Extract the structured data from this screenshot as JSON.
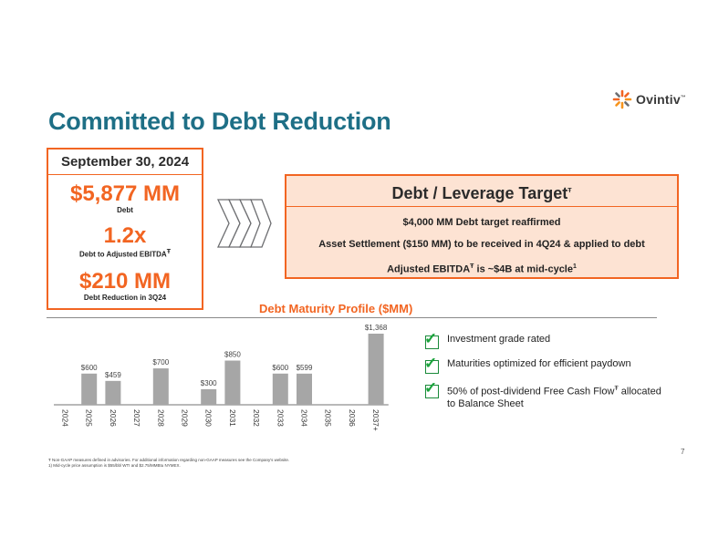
{
  "logo": {
    "text": "Ovintiv",
    "tm": "™"
  },
  "title": "Committed to Debt Reduction",
  "stats": {
    "date": "September 30, 2024",
    "items": [
      {
        "value": "$5,877 MM",
        "label": "Debt"
      },
      {
        "value": "1.2x",
        "label": "Debt to Adjusted EBITDA",
        "label_sup": "Ŧ"
      },
      {
        "value": "$210 MM",
        "label": "Debt Reduction in 3Q24"
      }
    ]
  },
  "target": {
    "heading": "Debt / Leverage Target",
    "heading_sup": "Ŧ",
    "lines": [
      {
        "text": "$4,000 MM Debt target reaffirmed"
      },
      {
        "text": "Asset Settlement ($150 MM) to be received in 4Q24 & applied to debt"
      },
      {
        "pre": "Adjusted EBITDA",
        "sup": "Ŧ",
        "post": " is ~$4B at mid-cycle",
        "sup2": "1"
      }
    ]
  },
  "chart_data": {
    "type": "bar",
    "title": "Debt Maturity Profile ($MM)",
    "categories": [
      "2024",
      "2025",
      "2026",
      "2027",
      "2028",
      "2029",
      "2030",
      "2031",
      "2032",
      "2033",
      "2034",
      "2035",
      "2036",
      "2037+"
    ],
    "values": [
      0,
      600,
      459,
      0,
      700,
      0,
      300,
      850,
      0,
      600,
      599,
      0,
      0,
      1368
    ],
    "data_labels": [
      "",
      "$600",
      "$459",
      "",
      "$700",
      "",
      "$300",
      "$850",
      "",
      "$600",
      "$599",
      "",
      "",
      "$1,368"
    ],
    "ylim": [
      0,
      1368
    ],
    "bar_color": "#a6a6a6",
    "grid": false
  },
  "checklist": [
    {
      "text": "Investment grade rated"
    },
    {
      "text": "Maturities optimized for efficient paydown"
    },
    {
      "text": "50% of post-dividend Free Cash Flow",
      "sup": "Ŧ",
      "post": " allocated to Balance Sheet"
    }
  ],
  "page_number": "7",
  "footnotes": [
    "Ŧ Non-GAAP measures defined in advisories. For additional information regarding non-GAAP measures see the Company's website.",
    "1) Mid-cycle price assumption is $55/bbl WTI and $2.75/MMBtu NYMEX."
  ],
  "colors": {
    "accent": "#f26522",
    "title": "#1e6f86",
    "target_bg": "#fde3d3",
    "check": "#1aa33b"
  }
}
